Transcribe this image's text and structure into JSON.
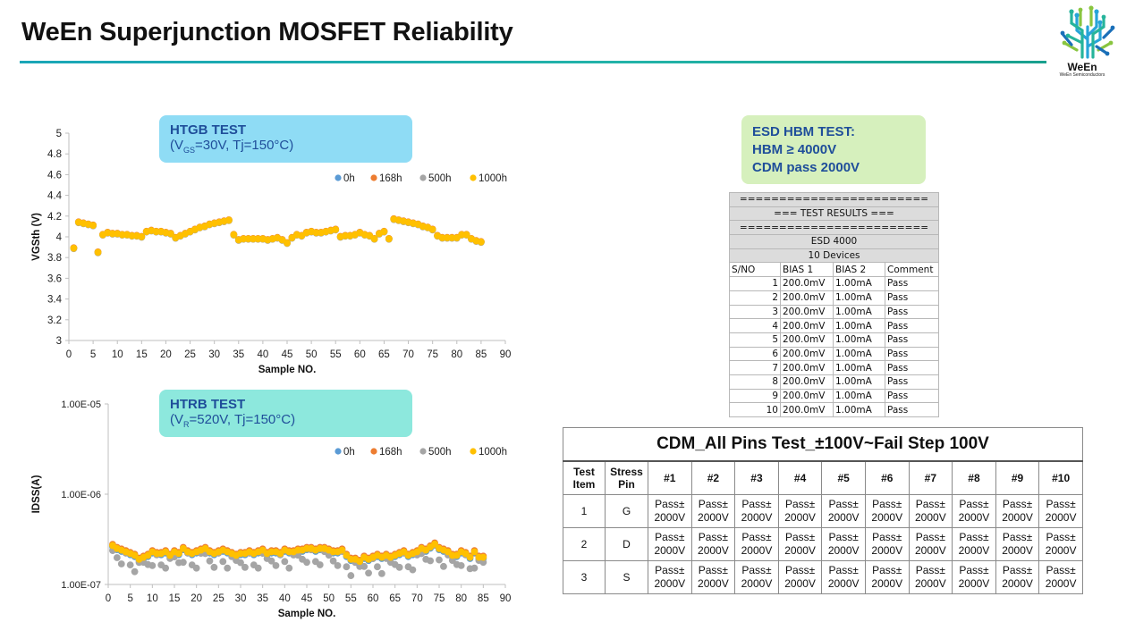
{
  "title": "WeEn Superjunction MOSFET Reliability",
  "logo": {
    "name": "WeEn",
    "subtitle": "WeEn Semiconductors"
  },
  "htgb": {
    "label_title": "HTGB TEST",
    "label_cond_open": "(V",
    "label_cond_sub": "GS",
    "label_cond_rest": "=30V, Tj=150°C)"
  },
  "htrb": {
    "label_title": "HTRB TEST",
    "label_cond_open": "(V",
    "label_cond_sub": "R",
    "label_cond_rest": "=520V, Tj=150°C)"
  },
  "esd": {
    "line1": "ESD HBM TEST:",
    "line2": "HBM ≥ 4000V",
    "line3": "CDM pass 2000V"
  },
  "esd_table": {
    "sep": "========================",
    "results": "===   TEST RESULTS   ===",
    "test": "ESD 4000",
    "devices": "10 Devices",
    "headers": [
      "S/NO",
      "BIAS 1",
      "BIAS 2",
      "Comment"
    ],
    "rows": [
      [
        "1",
        "200.0mV",
        "1.00mA",
        "Pass"
      ],
      [
        "2",
        "200.0mV",
        "1.00mA",
        "Pass"
      ],
      [
        "3",
        "200.0mV",
        "1.00mA",
        "Pass"
      ],
      [
        "4",
        "200.0mV",
        "1.00mA",
        "Pass"
      ],
      [
        "5",
        "200.0mV",
        "1.00mA",
        "Pass"
      ],
      [
        "6",
        "200.0mV",
        "1.00mA",
        "Pass"
      ],
      [
        "7",
        "200.0mV",
        "1.00mA",
        "Pass"
      ],
      [
        "8",
        "200.0mV",
        "1.00mA",
        "Pass"
      ],
      [
        "9",
        "200.0mV",
        "1.00mA",
        "Pass"
      ],
      [
        "10",
        "200.0mV",
        "1.00mA",
        "Pass"
      ]
    ]
  },
  "cdm_table": {
    "caption": "CDM_All Pins Test_±100V~Fail Step 100V",
    "head_item": [
      "Test",
      "Item"
    ],
    "head_pin": [
      "Stress",
      "Pin"
    ],
    "columns": [
      "#1",
      "#2",
      "#3",
      "#4",
      "#5",
      "#6",
      "#7",
      "#8",
      "#9",
      "#10"
    ],
    "rows": [
      {
        "item": "1",
        "pin": "G"
      },
      {
        "item": "2",
        "pin": "D"
      },
      {
        "item": "3",
        "pin": "S"
      }
    ],
    "cell_line1": "Pass±",
    "cell_line2": "2000V"
  },
  "chart_data": [
    {
      "type": "scatter",
      "title": "HTGB TEST",
      "xlabel": "Sample NO.",
      "ylabel": "VGSth (V)",
      "xlim": [
        0,
        90
      ],
      "ylim": [
        3,
        5
      ],
      "xticks": [
        "0",
        "5",
        "10",
        "15",
        "20",
        "25",
        "30",
        "35",
        "40",
        "45",
        "50",
        "55",
        "60",
        "65",
        "70",
        "75",
        "80",
        "85",
        "90"
      ],
      "yticks": [
        "3",
        "3.2",
        "3.4",
        "3.6",
        "3.8",
        "4",
        "4.2",
        "4.4",
        "4.6",
        "4.8",
        "5"
      ],
      "legend_position": "top-right",
      "series": [
        {
          "name": "0h",
          "color": "#5b9bd5"
        },
        {
          "name": "168h",
          "color": "#ed7d31"
        },
        {
          "name": "500h",
          "color": "#a5a5a5"
        },
        {
          "name": "1000h",
          "color": "#ffc000"
        }
      ],
      "x": [
        1,
        2,
        3,
        4,
        5,
        6,
        7,
        8,
        9,
        10,
        11,
        12,
        13,
        14,
        15,
        16,
        17,
        18,
        19,
        20,
        21,
        22,
        23,
        24,
        25,
        26,
        27,
        28,
        29,
        30,
        31,
        32,
        33,
        34,
        35,
        36,
        37,
        38,
        39,
        40,
        41,
        42,
        43,
        44,
        45,
        46,
        47,
        48,
        49,
        50,
        51,
        52,
        53,
        54,
        55,
        56,
        57,
        58,
        59,
        60,
        61,
        62,
        63,
        64,
        65,
        66,
        67,
        68,
        69,
        70,
        71,
        72,
        73,
        74,
        75,
        76,
        77,
        78,
        79,
        80,
        81,
        82,
        83,
        84,
        85
      ],
      "values": [
        3.89,
        4.14,
        4.13,
        4.12,
        4.11,
        3.85,
        4.02,
        4.04,
        4.03,
        4.03,
        4.02,
        4.02,
        4.01,
        4.01,
        4.0,
        4.05,
        4.06,
        4.05,
        4.05,
        4.04,
        4.03,
        3.99,
        4.01,
        4.03,
        4.05,
        4.07,
        4.09,
        4.1,
        4.12,
        4.13,
        4.14,
        4.15,
        4.16,
        4.02,
        3.97,
        3.98,
        3.98,
        3.98,
        3.98,
        3.98,
        3.97,
        3.98,
        3.99,
        3.97,
        3.94,
        3.99,
        4.02,
        4.01,
        4.04,
        4.05,
        4.04,
        4.04,
        4.05,
        4.06,
        4.07,
        4.0,
        4.01,
        4.01,
        4.02,
        4.04,
        4.02,
        4.01,
        3.98,
        4.03,
        4.05,
        3.98,
        4.17,
        4.16,
        4.15,
        4.14,
        4.13,
        4.12,
        4.1,
        4.09,
        4.07,
        4.01,
        3.99,
        3.99,
        3.99,
        3.99,
        4.02,
        4.02,
        3.98,
        3.96,
        3.95
      ]
    },
    {
      "type": "scatter",
      "title": "HTRB TEST",
      "xlabel": "Sample NO.",
      "ylabel": "IDSS(A)",
      "yscale": "log",
      "xlim": [
        0,
        90
      ],
      "ylim": [
        1e-07,
        1e-05
      ],
      "xticks": [
        "0",
        "5",
        "10",
        "15",
        "20",
        "25",
        "30",
        "35",
        "40",
        "45",
        "50",
        "55",
        "60",
        "65",
        "70",
        "75",
        "80",
        "85",
        "90"
      ],
      "yticks": [
        "1.00E-07",
        "1.00E-06",
        "1.00E-05"
      ],
      "legend_position": "top-right",
      "series": [
        {
          "name": "0h",
          "color": "#5b9bd5"
        },
        {
          "name": "168h",
          "color": "#ed7d31"
        },
        {
          "name": "500h",
          "color": "#a5a5a5"
        },
        {
          "name": "1000h",
          "color": "#ffc000"
        }
      ],
      "x": [
        1,
        2,
        3,
        4,
        5,
        6,
        7,
        8,
        9,
        10,
        11,
        12,
        13,
        14,
        15,
        16,
        17,
        18,
        19,
        20,
        21,
        22,
        23,
        24,
        25,
        26,
        27,
        28,
        29,
        30,
        31,
        32,
        33,
        34,
        35,
        36,
        37,
        38,
        39,
        40,
        41,
        42,
        43,
        44,
        45,
        46,
        47,
        48,
        49,
        50,
        51,
        52,
        53,
        54,
        55,
        56,
        57,
        58,
        59,
        60,
        61,
        62,
        63,
        64,
        65,
        66,
        67,
        68,
        69,
        70,
        71,
        72,
        73,
        74,
        75,
        76,
        77,
        78,
        79,
        80,
        81,
        82,
        83,
        84,
        85
      ],
      "values": [
        2.7e-07,
        2.5e-07,
        2.4e-07,
        2.3e-07,
        2.2e-07,
        2.1e-07,
        1.9e-07,
        2e-07,
        2.1e-07,
        2.3e-07,
        2.2e-07,
        2.2e-07,
        2.3e-07,
        2.1e-07,
        2.3e-07,
        2.2e-07,
        2.5e-07,
        2.3e-07,
        2.2e-07,
        2.3e-07,
        2.4e-07,
        2.5e-07,
        2.3e-07,
        2.2e-07,
        2.3e-07,
        2.4e-07,
        2.3e-07,
        2.2e-07,
        2.1e-07,
        2.2e-07,
        2.2e-07,
        2.3e-07,
        2.2e-07,
        2.3e-07,
        2.4e-07,
        2.2e-07,
        2.3e-07,
        2.3e-07,
        2.2e-07,
        2.4e-07,
        2.3e-07,
        2.3e-07,
        2.4e-07,
        2.4e-07,
        2.5e-07,
        2.5e-07,
        2.4e-07,
        2.5e-07,
        2.5e-07,
        2.4e-07,
        2.3e-07,
        2.3e-07,
        2.4e-07,
        2.1e-07,
        1.9e-07,
        1.9e-07,
        1.8e-07,
        2e-07,
        1.9e-07,
        2e-07,
        2.1e-07,
        2e-07,
        2.1e-07,
        2e-07,
        2.1e-07,
        2.2e-07,
        2.3e-07,
        2.1e-07,
        2.2e-07,
        2.3e-07,
        2.5e-07,
        2.4e-07,
        2.6e-07,
        2.8e-07,
        2.5e-07,
        2.4e-07,
        2.3e-07,
        2.1e-07,
        2.1e-07,
        2.3e-07,
        2.2e-07,
        2e-07,
        2.3e-07,
        2e-07,
        2e-07
      ]
    }
  ]
}
